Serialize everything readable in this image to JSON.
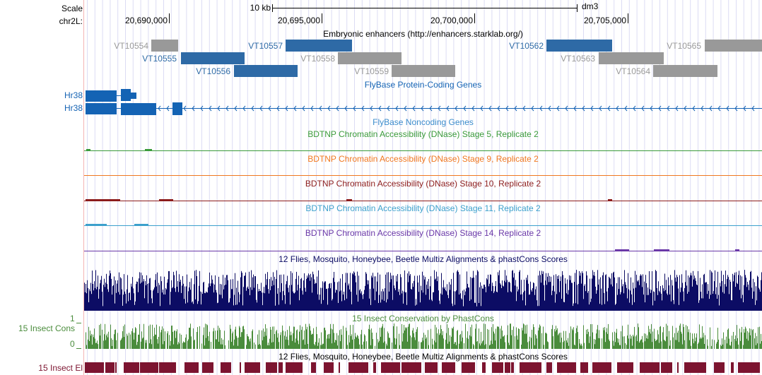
{
  "ruler": {
    "scale_label": "Scale",
    "chrom_label": "chr2L:",
    "scale_bar_text": "10 kb",
    "assembly": "dm3",
    "positions": [
      "20,690,000",
      "20,695,000",
      "20,700,000",
      "20,705,000"
    ]
  },
  "enhancers_track": {
    "title": "Embryonic enhancers (http://enhancers.starklab.org/)",
    "items": [
      {
        "name": "VT10554",
        "color": "#999999"
      },
      {
        "name": "VT10555",
        "color": "#2e6aa6"
      },
      {
        "name": "VT10556",
        "color": "#2e6aa6"
      },
      {
        "name": "VT10557",
        "color": "#2e6aa6"
      },
      {
        "name": "VT10558",
        "color": "#999999"
      },
      {
        "name": "VT10559",
        "color": "#999999"
      },
      {
        "name": "VT10562",
        "color": "#2e6aa6"
      },
      {
        "name": "VT10563",
        "color": "#999999"
      },
      {
        "name": "VT10564",
        "color": "#999999"
      },
      {
        "name": "VT10565",
        "color": "#999999"
      }
    ]
  },
  "protein_genes_track": {
    "title": "FlyBase Protein-Coding Genes",
    "genes": [
      "Hr38",
      "Hr38"
    ],
    "color": "#1463b4"
  },
  "noncoding_track": {
    "title": "FlyBase Noncoding Genes",
    "color": "#3c8ccc"
  },
  "dnase_tracks": [
    {
      "title": "BDTNP Chromatin Accessibility (DNase) Stage 5, Replicate 2",
      "color": "#3a9a3a"
    },
    {
      "title": "BDTNP Chromatin Accessibility (DNase) Stage 9, Replicate 2",
      "color": "#f07820"
    },
    {
      "title": "BDTNP Chromatin Accessibility (DNase) Stage 10, Replicate 2",
      "color": "#8c1c1c"
    },
    {
      "title": "BDTNP Chromatin Accessibility (DNase) Stage 11, Replicate 2",
      "color": "#3ca0cc"
    },
    {
      "title": "BDTNP Chromatin Accessibility (DNase) Stage 14, Replicate 2",
      "color": "#6a38a8"
    }
  ],
  "multiz_track": {
    "title": "12 Flies, Mosquito, Honeybee, Beetle Multiz Alignments & phastCons Scores",
    "color": "#0c0c64"
  },
  "phastcons_track": {
    "title": "15 Insect Conservation by PhastCons",
    "left_label": "15 Insect Cons",
    "y_max": "1",
    "y_min": "0",
    "color": "#4a8c3c"
  },
  "elements_track": {
    "title": "12 Flies, Mosquito, Honeybee, Beetle Multiz Alignments & phastCons Scores",
    "left_label": "15 Insect El",
    "color": "#7c1430"
  }
}
